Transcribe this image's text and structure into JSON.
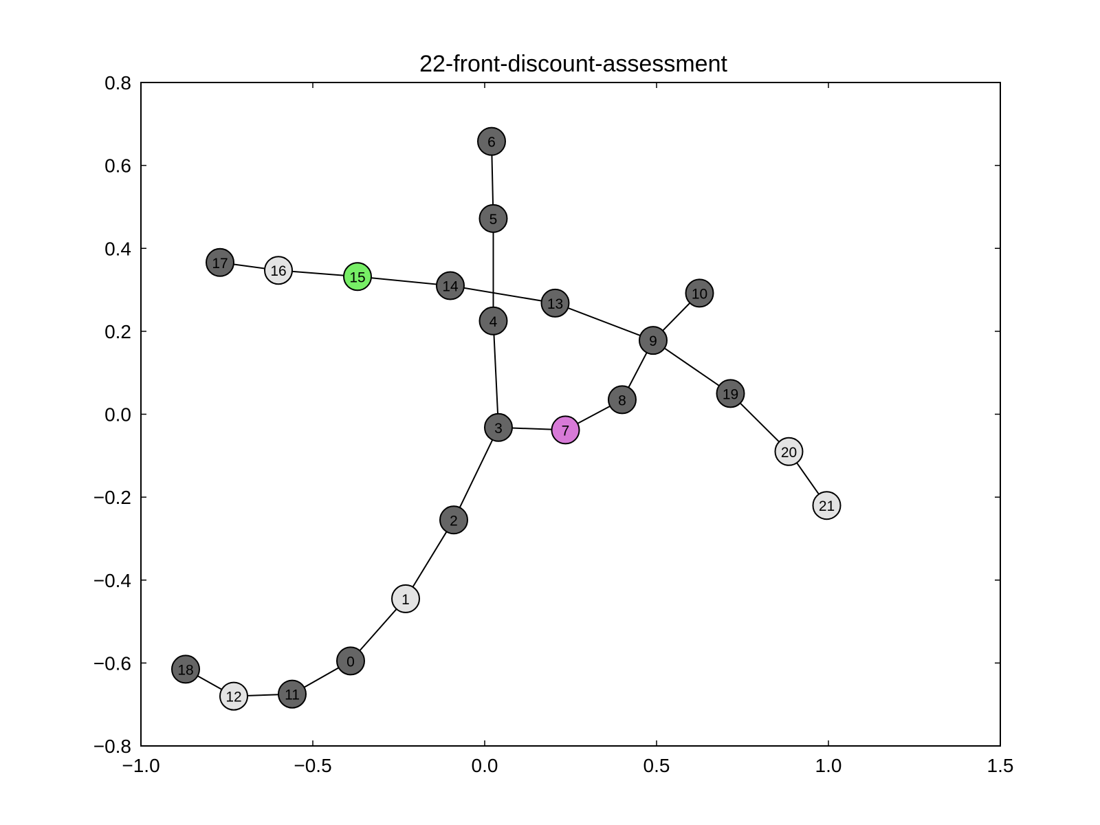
{
  "chart_data": {
    "type": "scatter",
    "subtype": "network-graph",
    "title": "22-front-discount-assessment",
    "xlabel": "",
    "ylabel": "",
    "xlim": [
      -1.0,
      1.5
    ],
    "ylim": [
      -0.8,
      0.8
    ],
    "x_ticks": [
      -1.0,
      -0.5,
      0.0,
      0.5,
      1.0,
      1.5
    ],
    "x_tick_labels": [
      "−1.0",
      "−0.5",
      "0.0",
      "0.5",
      "1.0",
      "1.5"
    ],
    "y_ticks": [
      -0.8,
      -0.6,
      -0.4,
      -0.2,
      0.0,
      0.2,
      0.4,
      0.6,
      0.8
    ],
    "y_tick_labels": [
      "−0.8",
      "−0.6",
      "−0.4",
      "−0.2",
      "0.0",
      "0.2",
      "0.4",
      "0.6",
      "0.8"
    ],
    "grid": false,
    "colors": {
      "dark": "#656565",
      "light": "#e3e3e3",
      "green": "#77ee66",
      "purple": "#d77ad7",
      "edge": "#000000"
    },
    "nodes": [
      {
        "id": "0",
        "x": -0.39,
        "y": -0.595,
        "color": "dark"
      },
      {
        "id": "1",
        "x": -0.23,
        "y": -0.445,
        "color": "light"
      },
      {
        "id": "2",
        "x": -0.09,
        "y": -0.255,
        "color": "dark"
      },
      {
        "id": "3",
        "x": 0.04,
        "y": -0.032,
        "color": "dark"
      },
      {
        "id": "4",
        "x": 0.025,
        "y": 0.225,
        "color": "dark"
      },
      {
        "id": "5",
        "x": 0.025,
        "y": 0.472,
        "color": "dark"
      },
      {
        "id": "6",
        "x": 0.02,
        "y": 0.658,
        "color": "dark"
      },
      {
        "id": "7",
        "x": 0.235,
        "y": -0.038,
        "color": "purple"
      },
      {
        "id": "8",
        "x": 0.4,
        "y": 0.035,
        "color": "dark"
      },
      {
        "id": "9",
        "x": 0.49,
        "y": 0.178,
        "color": "dark"
      },
      {
        "id": "10",
        "x": 0.625,
        "y": 0.292,
        "color": "dark"
      },
      {
        "id": "11",
        "x": -0.56,
        "y": -0.675,
        "color": "dark"
      },
      {
        "id": "12",
        "x": -0.73,
        "y": -0.68,
        "color": "light"
      },
      {
        "id": "13",
        "x": 0.205,
        "y": 0.268,
        "color": "dark"
      },
      {
        "id": "14",
        "x": -0.1,
        "y": 0.31,
        "color": "dark"
      },
      {
        "id": "15",
        "x": -0.37,
        "y": 0.332,
        "color": "green"
      },
      {
        "id": "16",
        "x": -0.6,
        "y": 0.347,
        "color": "light"
      },
      {
        "id": "17",
        "x": -0.77,
        "y": 0.366,
        "color": "dark"
      },
      {
        "id": "18",
        "x": -0.87,
        "y": -0.615,
        "color": "dark"
      },
      {
        "id": "19",
        "x": 0.715,
        "y": 0.05,
        "color": "dark"
      },
      {
        "id": "20",
        "x": 0.885,
        "y": -0.09,
        "color": "light"
      },
      {
        "id": "21",
        "x": 0.995,
        "y": -0.22,
        "color": "light"
      }
    ],
    "edges": [
      [
        "18",
        "12"
      ],
      [
        "12",
        "11"
      ],
      [
        "11",
        "0"
      ],
      [
        "0",
        "1"
      ],
      [
        "1",
        "2"
      ],
      [
        "2",
        "3"
      ],
      [
        "3",
        "4"
      ],
      [
        "4",
        "5"
      ],
      [
        "5",
        "6"
      ],
      [
        "3",
        "7"
      ],
      [
        "7",
        "8"
      ],
      [
        "8",
        "9"
      ],
      [
        "9",
        "10"
      ],
      [
        "9",
        "19"
      ],
      [
        "19",
        "20"
      ],
      [
        "20",
        "21"
      ],
      [
        "9",
        "13"
      ],
      [
        "13",
        "14"
      ],
      [
        "14",
        "15"
      ],
      [
        "15",
        "16"
      ],
      [
        "16",
        "17"
      ]
    ]
  }
}
